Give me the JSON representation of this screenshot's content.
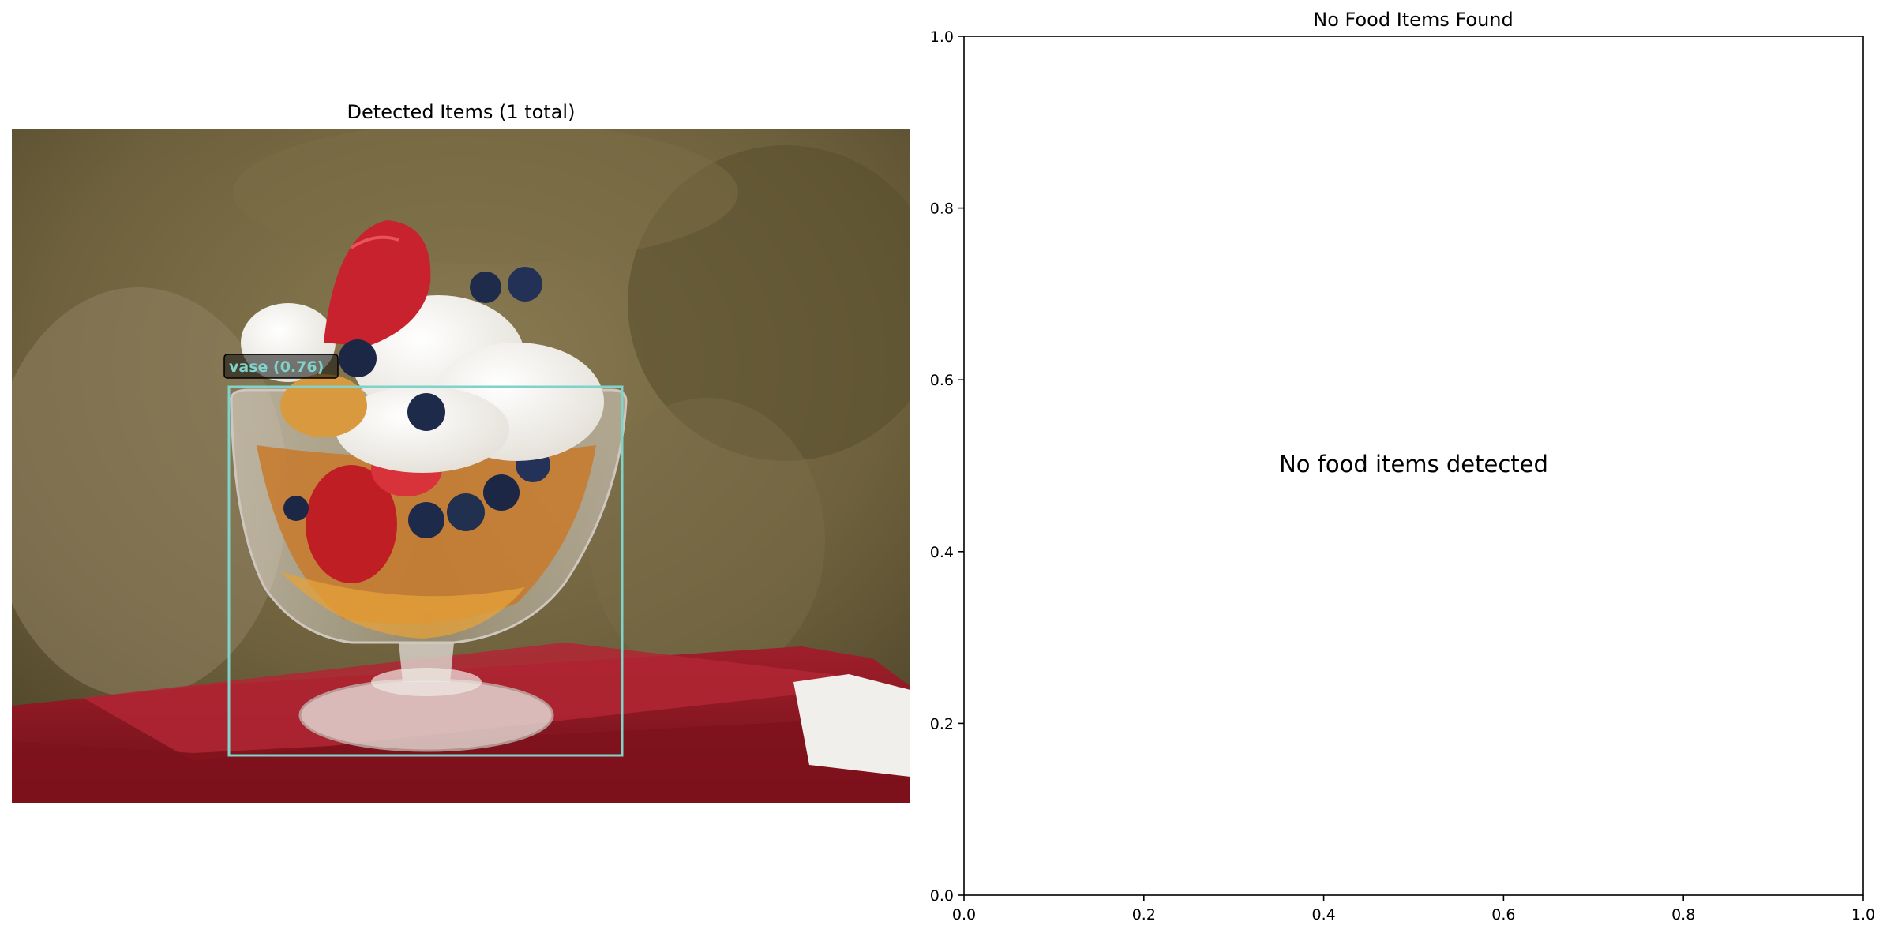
{
  "left_panel": {
    "title": "Detected Items (1 total)",
    "detections": [
      {
        "label": "vase (0.76)",
        "class": "vase",
        "score": 0.76,
        "color": "#7fd3c9"
      }
    ]
  },
  "right_panel": {
    "title": "No Food Items Found",
    "message": "No food items detected"
  },
  "chart_data": {
    "type": "scatter",
    "title": "No Food Items Found",
    "xlabel": "",
    "ylabel": "",
    "xlim": [
      0.0,
      1.0
    ],
    "ylim": [
      0.0,
      1.0
    ],
    "xticks": [
      "0.0",
      "0.2",
      "0.4",
      "0.6",
      "0.8",
      "1.0"
    ],
    "yticks": [
      "0.0",
      "0.2",
      "0.4",
      "0.6",
      "0.8",
      "1.0"
    ],
    "series": [],
    "grid": false,
    "annotation": {
      "text": "No food items detected",
      "x": 0.5,
      "y": 0.5
    }
  }
}
